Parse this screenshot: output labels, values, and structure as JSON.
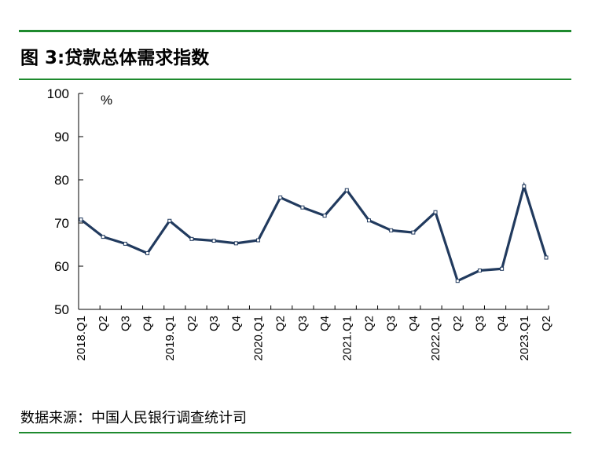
{
  "title": "图 3:贷款总体需求指数",
  "source": "数据来源：中国人民银行调查统计司",
  "chart_data": {
    "type": "line",
    "title": "图 3:贷款总体需求指数",
    "unit": "%",
    "xlabel": "",
    "ylabel": "",
    "ylim": [
      50,
      100
    ],
    "yticks": [
      50,
      60,
      70,
      80,
      90,
      100
    ],
    "grid": false,
    "categories": [
      "2018.Q1",
      "Q2",
      "Q3",
      "Q4",
      "2019.Q1",
      "Q2",
      "Q3",
      "Q4",
      "2020.Q1",
      "Q2",
      "Q3",
      "Q4",
      "2021.Q1",
      "Q2",
      "Q3",
      "Q4",
      "2022.Q1",
      "Q2",
      "Q3",
      "Q4",
      "2023.Q1",
      "Q2"
    ],
    "series": [
      {
        "values": [
          70.8,
          66.8,
          65.2,
          63.0,
          70.5,
          66.3,
          65.9,
          65.3,
          66.0,
          75.9,
          73.6,
          71.7,
          77.6,
          70.6,
          68.3,
          67.8,
          72.5,
          56.6,
          59.0,
          59.4,
          78.5,
          62.0
        ],
        "color": "#213a5e"
      }
    ]
  }
}
